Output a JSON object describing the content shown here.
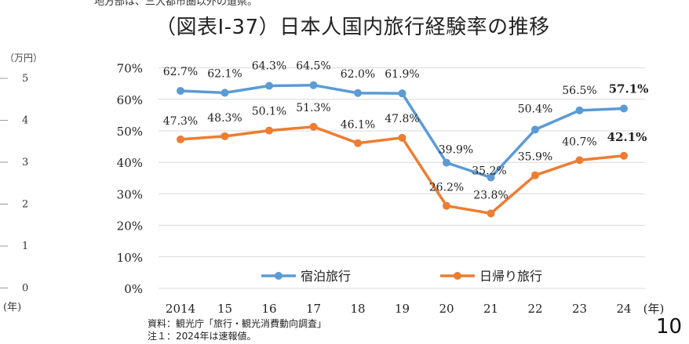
{
  "header": {
    "top_note": "地方部は、三大都市圏以外の道県。",
    "title": "（図表Ⅰ-37）日本人国内旅行経験率の推移"
  },
  "left_axis": {
    "unit": "（万円）",
    "ticks": [
      "5",
      "4",
      "3",
      "2",
      "1",
      "0"
    ],
    "x_unit": "(年)"
  },
  "chart_data": {
    "type": "line",
    "title": "（図表Ⅰ-37）日本人国内旅行経験率の推移",
    "categories": [
      "2014",
      "15",
      "16",
      "17",
      "18",
      "19",
      "20",
      "21",
      "22",
      "23",
      "24"
    ],
    "x_unit": "(年)",
    "ylim": [
      0,
      70
    ],
    "y_ticks": [
      "0%",
      "10%",
      "20%",
      "30%",
      "40%",
      "50%",
      "60%",
      "70%"
    ],
    "grid": true,
    "legend": "bottom",
    "series": [
      {
        "name": "宿泊旅行",
        "color": "#5b9bd5",
        "values": [
          62.7,
          62.1,
          64.3,
          64.5,
          62.0,
          61.9,
          39.9,
          35.2,
          50.4,
          56.5,
          57.1
        ],
        "labels": [
          "62.7%",
          "62.1%",
          "64.3%",
          "64.5%",
          "62.0%",
          "61.9%",
          "39.9%",
          "35.2%",
          "50.4%",
          "56.5%",
          "57.1%"
        ]
      },
      {
        "name": "日帰り旅行",
        "color": "#ed7d31",
        "values": [
          47.3,
          48.3,
          50.1,
          51.3,
          46.1,
          47.8,
          26.2,
          23.8,
          35.9,
          40.7,
          42.1
        ],
        "labels": [
          "47.3%",
          "48.3%",
          "50.1%",
          "51.3%",
          "46.1%",
          "47.8%",
          "26.2%",
          "23.8%",
          "35.9%",
          "40.7%",
          "42.1%"
        ]
      }
    ]
  },
  "footer": {
    "source": "資料：観光庁「旅行・観光消費動向調査」",
    "note": "注１：2024年は速報値。",
    "page_number": "10"
  }
}
